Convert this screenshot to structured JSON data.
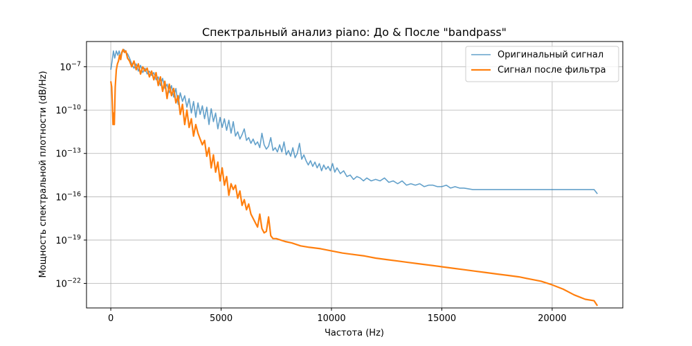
{
  "chart_data": {
    "type": "line",
    "title": "Спектральный анализ piano: До & После \"bandpass\"",
    "xlabel": "Частота (Hz)",
    "ylabel": "Мощность спектральной плотности (dB/Hz)",
    "xlim": [
      -1100,
      23200
    ],
    "ylim_log10": [
      -23.7,
      -5.25
    ],
    "y_scale": "log",
    "grid": true,
    "legend_position": "top-right",
    "x_ticks": [
      {
        "value": 0,
        "label": "0"
      },
      {
        "value": 5000,
        "label": "5000"
      },
      {
        "value": 10000,
        "label": "10000"
      },
      {
        "value": 15000,
        "label": "15000"
      },
      {
        "value": 20000,
        "label": "20000"
      }
    ],
    "y_ticks": [
      {
        "exp": -7,
        "base": "10",
        "sup": "−7"
      },
      {
        "exp": -10,
        "base": "10",
        "sup": "−10"
      },
      {
        "exp": -13,
        "base": "10",
        "sup": "−13"
      },
      {
        "exp": -16,
        "base": "10",
        "sup": "−16"
      },
      {
        "exp": -19,
        "base": "10",
        "sup": "−19"
      },
      {
        "exp": -22,
        "base": "10",
        "sup": "−22"
      }
    ],
    "series": [
      {
        "name": "Оригинальный сигнал",
        "color": "#1f77b4",
        "opacity": 0.7,
        "width": 1.6,
        "points_log10": [
          [
            0,
            -7.2
          ],
          [
            60,
            -6.6
          ],
          [
            120,
            -5.9
          ],
          [
            180,
            -6.4
          ],
          [
            250,
            -5.9
          ],
          [
            320,
            -6.2
          ],
          [
            380,
            -5.9
          ],
          [
            450,
            -6.3
          ],
          [
            520,
            -6.0
          ],
          [
            600,
            -5.8
          ],
          [
            680,
            -6.0
          ],
          [
            760,
            -6.1
          ],
          [
            850,
            -6.4
          ],
          [
            950,
            -6.8
          ],
          [
            1050,
            -7.1
          ],
          [
            1150,
            -6.8
          ],
          [
            1250,
            -7.3
          ],
          [
            1350,
            -6.9
          ],
          [
            1450,
            -7.4
          ],
          [
            1550,
            -7.1
          ],
          [
            1650,
            -7.5
          ],
          [
            1750,
            -7.3
          ],
          [
            1850,
            -7.6
          ],
          [
            1950,
            -7.4
          ],
          [
            2050,
            -7.9
          ],
          [
            2150,
            -7.7
          ],
          [
            2250,
            -8.3
          ],
          [
            2350,
            -7.8
          ],
          [
            2450,
            -8.5
          ],
          [
            2550,
            -8.2
          ],
          [
            2650,
            -8.8
          ],
          [
            2750,
            -8.3
          ],
          [
            2850,
            -9.1
          ],
          [
            2950,
            -8.5
          ],
          [
            3050,
            -9.6
          ],
          [
            3150,
            -8.8
          ],
          [
            3250,
            -9.4
          ],
          [
            3350,
            -9.0
          ],
          [
            3450,
            -9.8
          ],
          [
            3550,
            -9.2
          ],
          [
            3650,
            -10.2
          ],
          [
            3750,
            -9.4
          ],
          [
            3850,
            -10.5
          ],
          [
            3950,
            -9.5
          ],
          [
            4050,
            -10.3
          ],
          [
            4150,
            -9.7
          ],
          [
            4250,
            -10.6
          ],
          [
            4350,
            -9.8
          ],
          [
            4450,
            -11.0
          ],
          [
            4550,
            -9.9
          ],
          [
            4650,
            -10.8
          ],
          [
            4750,
            -10.2
          ],
          [
            4850,
            -11.3
          ],
          [
            4950,
            -10.5
          ],
          [
            5050,
            -11.2
          ],
          [
            5150,
            -10.6
          ],
          [
            5250,
            -11.4
          ],
          [
            5350,
            -10.7
          ],
          [
            5450,
            -11.6
          ],
          [
            5550,
            -10.8
          ],
          [
            5650,
            -11.8
          ],
          [
            5750,
            -11.5
          ],
          [
            5850,
            -12.0
          ],
          [
            5950,
            -11.7
          ],
          [
            6050,
            -11.3
          ],
          [
            6150,
            -12.1
          ],
          [
            6250,
            -11.9
          ],
          [
            6350,
            -12.3
          ],
          [
            6450,
            -12.0
          ],
          [
            6550,
            -12.4
          ],
          [
            6650,
            -12.2
          ],
          [
            6750,
            -12.6
          ],
          [
            6850,
            -11.6
          ],
          [
            6950,
            -12.4
          ],
          [
            7050,
            -12.7
          ],
          [
            7150,
            -12.5
          ],
          [
            7250,
            -11.9
          ],
          [
            7350,
            -12.8
          ],
          [
            7450,
            -12.6
          ],
          [
            7550,
            -12.9
          ],
          [
            7650,
            -12.4
          ],
          [
            7750,
            -12.9
          ],
          [
            7850,
            -12.2
          ],
          [
            7950,
            -13.1
          ],
          [
            8050,
            -12.8
          ],
          [
            8150,
            -13.2
          ],
          [
            8250,
            -12.6
          ],
          [
            8350,
            -13.3
          ],
          [
            8450,
            -13.0
          ],
          [
            8550,
            -12.3
          ],
          [
            8650,
            -13.4
          ],
          [
            8750,
            -13.1
          ],
          [
            8850,
            -13.5
          ],
          [
            8950,
            -13.8
          ],
          [
            9050,
            -13.5
          ],
          [
            9150,
            -13.9
          ],
          [
            9250,
            -13.6
          ],
          [
            9350,
            -14.0
          ],
          [
            9450,
            -13.7
          ],
          [
            9550,
            -14.2
          ],
          [
            9650,
            -13.8
          ],
          [
            9750,
            -14.1
          ],
          [
            9850,
            -13.9
          ],
          [
            9950,
            -14.2
          ],
          [
            10050,
            -13.7
          ],
          [
            10150,
            -14.3
          ],
          [
            10250,
            -14.0
          ],
          [
            10400,
            -14.4
          ],
          [
            10550,
            -14.2
          ],
          [
            10700,
            -14.6
          ],
          [
            10850,
            -14.5
          ],
          [
            11000,
            -14.8
          ],
          [
            11150,
            -14.6
          ],
          [
            11300,
            -14.7
          ],
          [
            11450,
            -14.9
          ],
          [
            11600,
            -14.7
          ],
          [
            11800,
            -14.9
          ],
          [
            12000,
            -14.8
          ],
          [
            12200,
            -14.9
          ],
          [
            12400,
            -14.7
          ],
          [
            12600,
            -15.0
          ],
          [
            12800,
            -14.9
          ],
          [
            13000,
            -15.1
          ],
          [
            13200,
            -14.9
          ],
          [
            13400,
            -15.2
          ],
          [
            13600,
            -15.1
          ],
          [
            13800,
            -15.2
          ],
          [
            14000,
            -15.1
          ],
          [
            14200,
            -15.3
          ],
          [
            14400,
            -15.2
          ],
          [
            14600,
            -15.2
          ],
          [
            14800,
            -15.3
          ],
          [
            15000,
            -15.3
          ],
          [
            15200,
            -15.2
          ],
          [
            15400,
            -15.4
          ],
          [
            15600,
            -15.3
          ],
          [
            15800,
            -15.4
          ],
          [
            16000,
            -15.4
          ],
          [
            16400,
            -15.5
          ],
          [
            16800,
            -15.5
          ],
          [
            17200,
            -15.5
          ],
          [
            17600,
            -15.5
          ],
          [
            18000,
            -15.5
          ],
          [
            18500,
            -15.5
          ],
          [
            19000,
            -15.5
          ],
          [
            19500,
            -15.5
          ],
          [
            20000,
            -15.5
          ],
          [
            20500,
            -15.5
          ],
          [
            21000,
            -15.5
          ],
          [
            21500,
            -15.5
          ],
          [
            21900,
            -15.5
          ],
          [
            22050,
            -15.8
          ]
        ]
      },
      {
        "name": "Сигнал после фильтра",
        "color": "#ff7f0e",
        "opacity": 1,
        "width": 2.2,
        "points_log10": [
          [
            0,
            -8.0
          ],
          [
            40,
            -8.4
          ],
          [
            70,
            -9.5
          ],
          [
            100,
            -11.0
          ],
          [
            130,
            -10.2
          ],
          [
            160,
            -11.0
          ],
          [
            200,
            -8.4
          ],
          [
            250,
            -7.2
          ],
          [
            300,
            -6.8
          ],
          [
            350,
            -6.6
          ],
          [
            400,
            -6.2
          ],
          [
            450,
            -6.5
          ],
          [
            500,
            -6.0
          ],
          [
            560,
            -5.8
          ],
          [
            620,
            -6.0
          ],
          [
            680,
            -5.9
          ],
          [
            760,
            -6.4
          ],
          [
            850,
            -6.6
          ],
          [
            950,
            -7.0
          ],
          [
            1050,
            -6.6
          ],
          [
            1150,
            -7.2
          ],
          [
            1250,
            -6.8
          ],
          [
            1350,
            -7.5
          ],
          [
            1450,
            -7.0
          ],
          [
            1550,
            -7.3
          ],
          [
            1650,
            -7.1
          ],
          [
            1750,
            -7.7
          ],
          [
            1850,
            -7.3
          ],
          [
            1950,
            -7.9
          ],
          [
            2050,
            -7.4
          ],
          [
            2150,
            -8.3
          ],
          [
            2250,
            -7.7
          ],
          [
            2350,
            -8.7
          ],
          [
            2450,
            -8.0
          ],
          [
            2550,
            -9.2
          ],
          [
            2650,
            -8.2
          ],
          [
            2750,
            -9.0
          ],
          [
            2850,
            -8.5
          ],
          [
            2950,
            -9.5
          ],
          [
            3050,
            -9.0
          ],
          [
            3150,
            -10.3
          ],
          [
            3250,
            -9.6
          ],
          [
            3350,
            -11.0
          ],
          [
            3450,
            -10.0
          ],
          [
            3550,
            -11.2
          ],
          [
            3650,
            -10.6
          ],
          [
            3750,
            -11.8
          ],
          [
            3850,
            -11.0
          ],
          [
            3950,
            -11.6
          ],
          [
            4050,
            -12.0
          ],
          [
            4150,
            -12.4
          ],
          [
            4250,
            -12.1
          ],
          [
            4350,
            -13.2
          ],
          [
            4450,
            -12.6
          ],
          [
            4550,
            -14.0
          ],
          [
            4650,
            -13.1
          ],
          [
            4750,
            -14.3
          ],
          [
            4850,
            -13.6
          ],
          [
            4950,
            -14.9
          ],
          [
            5050,
            -14.0
          ],
          [
            5150,
            -15.2
          ],
          [
            5250,
            -14.6
          ],
          [
            5350,
            -15.9
          ],
          [
            5450,
            -15.1
          ],
          [
            5550,
            -15.5
          ],
          [
            5650,
            -15.2
          ],
          [
            5750,
            -16.1
          ],
          [
            5850,
            -15.6
          ],
          [
            5950,
            -16.6
          ],
          [
            6050,
            -16.2
          ],
          [
            6150,
            -16.9
          ],
          [
            6250,
            -16.5
          ],
          [
            6350,
            -17.2
          ],
          [
            6450,
            -17.5
          ],
          [
            6550,
            -17.8
          ],
          [
            6650,
            -18.1
          ],
          [
            6750,
            -17.2
          ],
          [
            6850,
            -18.2
          ],
          [
            6950,
            -18.5
          ],
          [
            7050,
            -18.4
          ],
          [
            7150,
            -17.4
          ],
          [
            7250,
            -18.7
          ],
          [
            7350,
            -18.9
          ],
          [
            7500,
            -18.9
          ],
          [
            7700,
            -19.0
          ],
          [
            7900,
            -19.1
          ],
          [
            8200,
            -19.2
          ],
          [
            8600,
            -19.4
          ],
          [
            9000,
            -19.5
          ],
          [
            9500,
            -19.6
          ],
          [
            10000,
            -19.75
          ],
          [
            10500,
            -19.9
          ],
          [
            11000,
            -20.0
          ],
          [
            11500,
            -20.1
          ],
          [
            12000,
            -20.25
          ],
          [
            12500,
            -20.35
          ],
          [
            13000,
            -20.45
          ],
          [
            13500,
            -20.55
          ],
          [
            14000,
            -20.65
          ],
          [
            14500,
            -20.75
          ],
          [
            15000,
            -20.85
          ],
          [
            15500,
            -20.95
          ],
          [
            16000,
            -21.05
          ],
          [
            16500,
            -21.15
          ],
          [
            17000,
            -21.25
          ],
          [
            17500,
            -21.35
          ],
          [
            18000,
            -21.45
          ],
          [
            18500,
            -21.55
          ],
          [
            19000,
            -21.7
          ],
          [
            19500,
            -21.85
          ],
          [
            20000,
            -22.1
          ],
          [
            20500,
            -22.4
          ],
          [
            21000,
            -22.8
          ],
          [
            21500,
            -23.1
          ],
          [
            21900,
            -23.2
          ],
          [
            22050,
            -23.55
          ]
        ]
      }
    ]
  }
}
